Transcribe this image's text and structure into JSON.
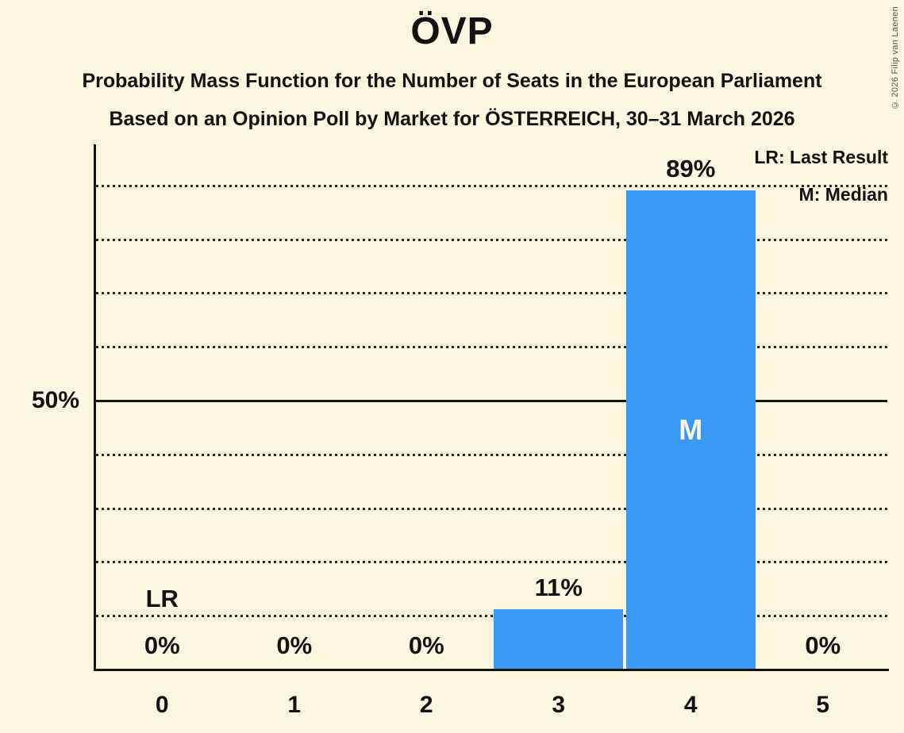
{
  "copyright": "© 2026 Filip van Laenen",
  "chart_data": {
    "type": "bar",
    "title": "ÖVP",
    "subtitle1": "Probability Mass Function for the Number of Seats in the European Parliament",
    "subtitle2": "Based on an Opinion Poll by Market for ÖSTERREICH, 30–31 March 2026",
    "categories": [
      "0",
      "1",
      "2",
      "3",
      "4",
      "5"
    ],
    "values": [
      0,
      0,
      0,
      11,
      89,
      0
    ],
    "value_labels": [
      "0%",
      "0%",
      "0%",
      "11%",
      "89%",
      "0%"
    ],
    "ylim": [
      0,
      100
    ],
    "ytick_value": 50,
    "ytick_label": "50%",
    "dotted_gridlines_pct": [
      10,
      20,
      30,
      40,
      60,
      70,
      80,
      90
    ],
    "solid_line_pct": 50,
    "median_seat_index": 4,
    "median_marker": "M",
    "last_result_seat_index": 0,
    "last_result_marker": "LR",
    "legend": {
      "lr": "LR: Last Result",
      "m": "M: Median"
    },
    "legend_position": "top-right",
    "grid": "dotted-horizontal",
    "colors": {
      "bar": "#3A99F5",
      "background": "#FBF6DF",
      "text": "#121212",
      "grid": "#2B2A22",
      "copyright": "#55544C"
    }
  }
}
